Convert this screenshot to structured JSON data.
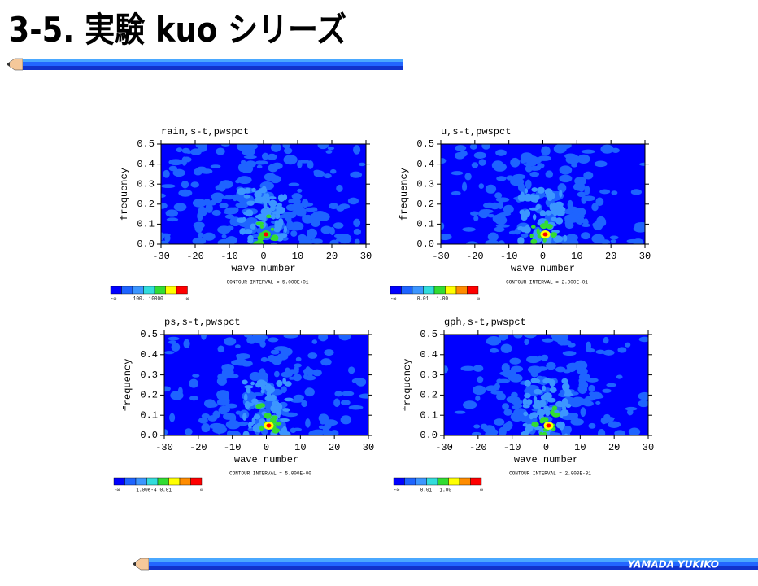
{
  "header": {
    "title": "3-5. 実験 kuo シリーズ"
  },
  "footer": {
    "author": "YAMADA YUKIKO"
  },
  "chart_data": [
    {
      "type": "contour",
      "title": "rain,s-t,pwspct",
      "x_label": "wave number",
      "y_label": "frequency",
      "xlim": [
        -30,
        30
      ],
      "ylim": [
        0,
        0.5
      ],
      "xticks": [
        -30,
        -20,
        -10,
        0,
        10,
        20,
        30
      ],
      "yticks": [
        {
          "value": 0,
          "label": "0.0"
        },
        0.1,
        0.2,
        0.3,
        0.4,
        0.5
      ],
      "contour_note": "CONTOUR INTERVAL = 5.000E+01",
      "colorbar": {
        "colors": [
          "#0000ff",
          "#1e64ff",
          "#3c96ff",
          "#32dcdc",
          "#32dc32",
          "#ffff00",
          "#ff0000"
        ],
        "labels": [
          "-∞",
          "100.",
          "10000",
          "∞"
        ]
      }
    },
    {
      "type": "contour",
      "title": "u,s-t,pwspct",
      "x_label": "wave number",
      "y_label": "frequency",
      "xlim": [
        -30,
        30
      ],
      "ylim": [
        0,
        0.5
      ],
      "xticks": [
        -30,
        -20,
        -10,
        0,
        10,
        20,
        30
      ],
      "yticks": [
        {
          "value": 0,
          "label": "0.0"
        },
        0.1,
        0.2,
        0.3,
        0.4,
        0.5
      ],
      "contour_note": "CONTOUR INTERVAL = 2.000E-01",
      "colorbar": {
        "colors": [
          "#0000ff",
          "#1e64ff",
          "#3c96ff",
          "#32dcdc",
          "#32dc32",
          "#ffff00",
          "#ff8c00",
          "#ff0000"
        ],
        "labels": [
          "-∞",
          "0.01",
          "1.00",
          "∞"
        ]
      }
    },
    {
      "type": "contour",
      "title": "ps,s-t,pwspct",
      "x_label": "wave number",
      "y_label": "frequency",
      "xlim": [
        -30,
        30
      ],
      "ylim": [
        0,
        0.5
      ],
      "xticks": [
        -30,
        -20,
        -10,
        0,
        10,
        20,
        30
      ],
      "yticks": [
        {
          "value": 0,
          "label": "0.0"
        },
        0.1,
        0.2,
        0.3,
        0.4,
        0.5
      ],
      "contour_note": "CONTOUR INTERVAL = 5.000E-00",
      "colorbar": {
        "colors": [
          "#0000ff",
          "#1e64ff",
          "#3c96ff",
          "#32dcdc",
          "#32dc32",
          "#ffff00",
          "#ff8c00",
          "#ff0000"
        ],
        "labels": [
          "-∞",
          "1.00e-4",
          "0.01",
          "∞"
        ]
      }
    },
    {
      "type": "contour",
      "title": "gph,s-t,pwspct",
      "x_label": "wave number",
      "y_label": "frequency",
      "xlim": [
        -30,
        30
      ],
      "ylim": [
        0,
        0.5
      ],
      "xticks": [
        -30,
        -20,
        -10,
        0,
        10,
        20,
        30
      ],
      "yticks": [
        {
          "value": 0,
          "label": "0.0"
        },
        0.1,
        0.2,
        0.3,
        0.4,
        0.5
      ],
      "contour_note": "CONTOUR INTERVAL = 2.000E-01",
      "colorbar": {
        "colors": [
          "#0000ff",
          "#1e64ff",
          "#3c96ff",
          "#32dcdc",
          "#32dc32",
          "#ffff00",
          "#ff8c00",
          "#ff0000"
        ],
        "labels": [
          "-∞",
          "0.01",
          "1.00",
          "∞"
        ]
      }
    }
  ]
}
